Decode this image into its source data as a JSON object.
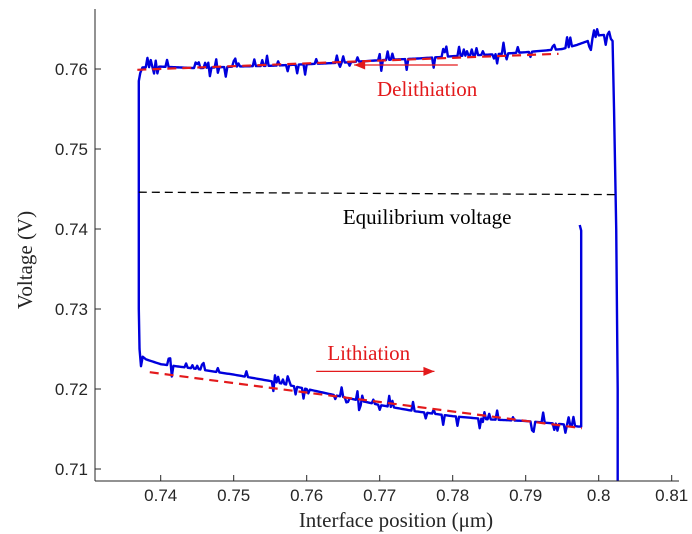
{
  "chart_data": {
    "type": "line",
    "title": "",
    "xlabel": "Interface position (μm)",
    "ylabel": "Voltage (V)",
    "xlim": [
      0.731,
      0.811
    ],
    "ylim": [
      0.7085,
      0.7675
    ],
    "xticks": [
      0.74,
      0.75,
      0.76,
      0.77,
      0.78,
      0.79,
      0.8,
      0.81
    ],
    "xtick_labels": [
      "0.74",
      "0.75",
      "0.76",
      "0.77",
      "0.78",
      "0.79",
      "0.8",
      "0.81"
    ],
    "yticks": [
      0.71,
      0.72,
      0.73,
      0.74,
      0.75,
      0.76
    ],
    "ytick_labels": [
      "0.71",
      "0.72",
      "0.73",
      "0.74",
      "0.75",
      "0.76"
    ],
    "grid": false,
    "legend": "none",
    "colors": {
      "blue_curve": "#0000dd",
      "red_fit": "#e31a1c",
      "equilibrium": "#000000",
      "axis": "#262626"
    },
    "series": [
      {
        "style": "solid-blue",
        "x": [
          0.8026,
          0.8026,
          0.8024,
          0.8021,
          0.8019,
          0.8012,
          0.8,
          0.7985,
          0.797,
          0.795,
          0.79,
          0.785,
          0.78,
          0.775,
          0.77,
          0.765,
          0.76,
          0.755,
          0.75,
          0.745,
          0.74,
          0.7375,
          0.7372,
          0.737,
          0.737,
          0.737,
          0.737,
          0.737,
          0.7371,
          0.7373,
          0.738,
          0.74,
          0.745,
          0.75,
          0.755,
          0.76,
          0.765,
          0.77,
          0.775,
          0.78,
          0.785,
          0.79,
          0.795,
          0.7972,
          0.7976,
          0.7976,
          0.7976,
          0.7976,
          0.7974
        ],
        "y": [
          0.708,
          0.72,
          0.74,
          0.755,
          0.7635,
          0.7643,
          0.7642,
          0.7635,
          0.763,
          0.7625,
          0.7621,
          0.7618,
          0.7616,
          0.7613,
          0.7611,
          0.7608,
          0.7606,
          0.7604,
          0.7603,
          0.7601,
          0.7603,
          0.7602,
          0.7595,
          0.7585,
          0.75,
          0.7417,
          0.7405,
          0.73,
          0.725,
          0.7242,
          0.7237,
          0.7231,
          0.7225,
          0.7218,
          0.721,
          0.72,
          0.719,
          0.718,
          0.7172,
          0.7166,
          0.7162,
          0.716,
          0.7156,
          0.7153,
          0.7153,
          0.72,
          0.73,
          0.7398,
          0.7405
        ]
      },
      {
        "style": "dashed-red",
        "x": [
          0.7368,
          0.7945
        ],
        "y": [
          0.7599,
          0.7619
        ]
      },
      {
        "style": "dashed-red",
        "x": [
          0.7385,
          0.7977
        ],
        "y": [
          0.7221,
          0.7151
        ]
      },
      {
        "style": "dashed-black",
        "x": [
          0.737,
          0.8022
        ],
        "y": [
          0.7446,
          0.7443
        ]
      }
    ],
    "annotations": [
      {
        "text": "Delithiation",
        "x": 0.7765,
        "y": 0.7575,
        "color": "red",
        "arrow": {
          "from": [
            0.7807,
            0.7605
          ],
          "to": [
            0.7665,
            0.7605
          ]
        }
      },
      {
        "text": "Equilibrium voltage",
        "x": 0.7765,
        "y": 0.7415,
        "color": "black"
      },
      {
        "text": "Lithiation",
        "x": 0.7685,
        "y": 0.7245,
        "color": "red",
        "arrow": {
          "from": [
            0.7613,
            0.7222
          ],
          "to": [
            0.7775,
            0.7222
          ]
        }
      }
    ]
  }
}
